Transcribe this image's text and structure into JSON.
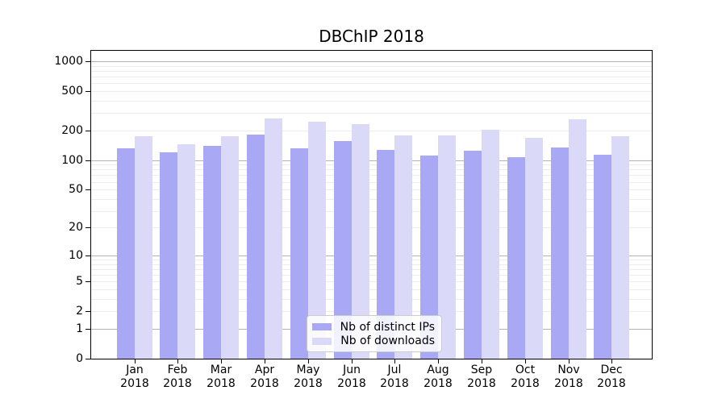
{
  "chart_data": {
    "type": "bar",
    "title": "DBChIP 2018",
    "categories": [
      "Jan",
      "Feb",
      "Mar",
      "Apr",
      "May",
      "Jun",
      "Jul",
      "Aug",
      "Sep",
      "Oct",
      "Nov",
      "Dec"
    ],
    "category_year": "2018",
    "series": [
      {
        "name": "Nb of distinct IPs",
        "color": "#a8a8f5",
        "values": [
          133,
          121,
          139,
          181,
          132,
          156,
          127,
          112,
          125,
          108,
          135,
          114
        ]
      },
      {
        "name": "Nb of downloads",
        "color": "#dadaf8",
        "values": [
          174,
          146,
          176,
          265,
          245,
          234,
          177,
          179,
          203,
          168,
          262,
          176
        ]
      }
    ],
    "yscale": "log1p",
    "ylim": [
      0,
      1280
    ],
    "yticks": [
      0,
      1,
      2,
      5,
      10,
      20,
      50,
      100,
      200,
      500,
      1000
    ],
    "grid": "horizontal",
    "legend_position": "lower-center",
    "colors": {
      "grid_major": "#b3b3b3",
      "grid_minor": "#ececec",
      "axis": "#000000",
      "background": "#ffffff"
    }
  }
}
